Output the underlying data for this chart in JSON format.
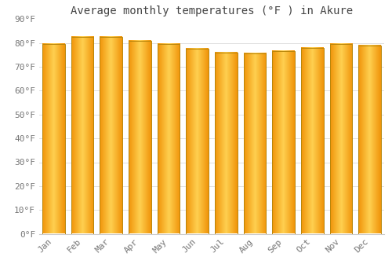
{
  "title": "Average monthly temperatures (°F ) in Akure",
  "months": [
    "Jan",
    "Feb",
    "Mar",
    "Apr",
    "May",
    "Jun",
    "Jul",
    "Aug",
    "Sep",
    "Oct",
    "Nov",
    "Dec"
  ],
  "values": [
    79.5,
    82.5,
    82.7,
    81.0,
    79.7,
    77.5,
    76.0,
    75.7,
    76.5,
    77.9,
    79.7,
    79.0
  ],
  "bar_color_center": "#FFD050",
  "bar_color_edge": "#F0940A",
  "bar_outline_color": "#B8860B",
  "background_color": "#FFFFFF",
  "grid_color": "#E0E0E0",
  "ylim": [
    0,
    90
  ],
  "yticks": [
    0,
    10,
    20,
    30,
    40,
    50,
    60,
    70,
    80,
    90
  ],
  "ytick_labels": [
    "0°F",
    "10°F",
    "20°F",
    "30°F",
    "40°F",
    "50°F",
    "60°F",
    "70°F",
    "80°F",
    "90°F"
  ],
  "title_fontsize": 10,
  "tick_fontsize": 8,
  "font_family": "monospace",
  "bar_width": 0.78
}
